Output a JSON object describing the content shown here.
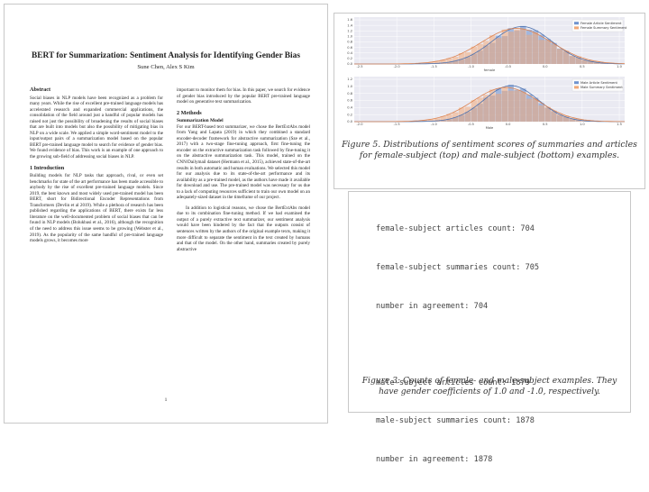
{
  "paper": {
    "title": "BERT for Summarization: Sentiment Analysis for Identifying Gender Bias",
    "authors": "Sune Chen, Alex S Kim",
    "left_column": {
      "abstract_heading": "Abstract",
      "abstract_text": "Social biases in NLP models have been recognized as a problem for many years. While the rise of excellent pre-trained language models has accelerated research and expanded commercial applications, the consolidation of the field around just a handful of popular models has raised not just the possibility of broadening the results of social biases that are built into models but also the possibility of mitigating bias in NLP on a wide scale. We applied a simple word-sentiment model to the input/output pairs of a summarization model based on the popular BERT pre-trained language model to search for evidence of gender bias. We found evidence of bias. This work is an example of one approach to the growing sub-field of addressing social biases in NLP.",
      "intro_heading": "1        Introduction",
      "intro_text": "Building models for NLP tasks that approach, rival, or even set benchmarks for state of the art performance has been made accessible to anybody by the rise of excellent pre-trained language models. Since 2019, the best known and most widely used pre-trained model has been BERT, short for Bidirectional Encoder Representations from Transformers (Devlin et al 2019). While a plethora of research has been published regarding the applications of BERT, there exists far less literature on the well-documented problem of social biases that can be found in NLP models (Bolukbasi et al., 2016), although the recognition of the need to address this issue seems to be growing (Webster et al., 2019). As the popularity of the same handful of pre-trained language models grows, it becomes more"
    },
    "right_column": {
      "continued_text": "important to monitor them for bias. In this paper, we search for evidence of gender bias introduced by the popular BERT pre-trained language model on generative text summarization.",
      "methods_heading": "2        Methods",
      "summ_heading": "Summarization Model",
      "methods_text": "For our BERT-based text summarizer, we chose the BertExtAbs model from Yang and Lapata (2019) in which they combined a standard encoder-decoder framework for abstractive summarization (Sze et al., 2017) with a two-stage fine-tuning approach, first fine-tuning the encoder on the extractive summarization task followed by fine-tuning it on the abstractive summarization task. This model, trained on the CNN/Dailymail dataset (Hermann et al., 2015), achieved state-of-the-art results in both automatic and human evaluations. We selected this model for our analysis due to its state-of-the-art performance and its availability as a pre-trained model, as the authors have made it available for download and use. The pre-trained model was necessary for us due to a lack of computing resources sufficient to train our own model on an adequately-sized dataset in the timeframe of our project.",
      "methods_text_2": "In addition to logistical reasons, we chose the BertExtAbs model due to its combination fine-tuning method. If we had examined the output of a purely extractive text summarizer, our sentiment analysis would have been hindered by the fact that the outputs consist of sentences written by the authors of the original example texts, making it more difficult to separate the sentiment in the text created by humans and that of the model. On the other hand, summaries created by purely abstractive"
    },
    "page_number": "1"
  },
  "figure5": {
    "caption": "Figure 5. Distributions of sentiment scores of summaries and articles for female-subject (top) and male-subject (bottom) examples.",
    "top_chart": {
      "xlabel": "female",
      "legend": [
        "Female Article Sentiment",
        "Female Summary Sentiment"
      ],
      "x_ticks": [
        "-2.5",
        "-2.0",
        "-1.5",
        "-1.0",
        "-0.5",
        "0.0",
        "0.5",
        "1.0"
      ],
      "y_ticks": [
        "0.0",
        "0.2",
        "0.4",
        "0.6",
        "0.8",
        "1.0",
        "1.2",
        "1.4",
        "1.6"
      ]
    },
    "bottom_chart": {
      "xlabel": "Male",
      "legend": [
        "Male Article Sentiment",
        "Male Summary Sentiment"
      ],
      "x_ticks": [
        "-2.0",
        "-1.5",
        "-1.0",
        "-0.5",
        "0.0",
        "0.5",
        "1.0",
        "1.5"
      ],
      "y_ticks": [
        "0.0",
        "0.2",
        "0.4",
        "0.6",
        "0.8",
        "1.0",
        "1.2"
      ]
    },
    "colors": {
      "article": "#6f93cf",
      "summary": "#f0a878"
    }
  },
  "figure3": {
    "lines": [
      "female-subject articles count: 704",
      "female-subject summaries count: 705",
      "number in agreement: 704",
      "",
      "male-subject articles count: 1879",
      "male-subject summaries count: 1878",
      "number in agreement: 1878"
    ],
    "caption": "Figure 3: Counts of female- and male-subject examples. They have gender coefficients of 1.0 and -1.0, respectively."
  }
}
